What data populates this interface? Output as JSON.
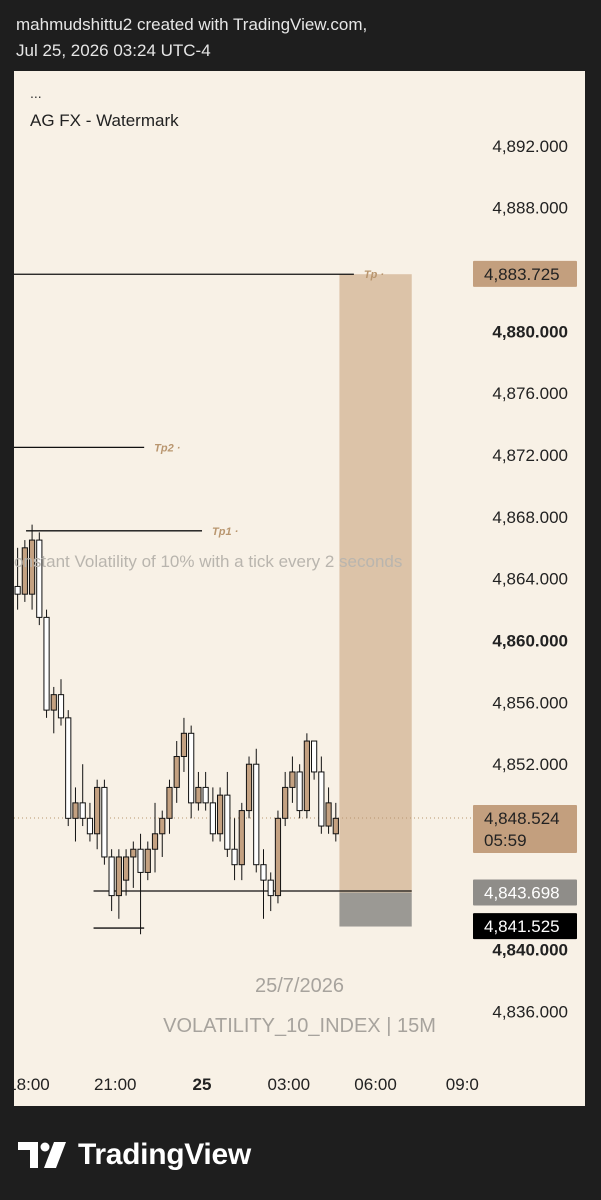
{
  "header": {
    "line1": "mahmudshittu2 created with TradingView.com,",
    "line2": "Jul 25, 2026 03:24 UTC-4"
  },
  "chart_header": {
    "menu": "...",
    "subtitle": "AG FX - Watermark"
  },
  "watermark": {
    "date": "25/7/2026",
    "symbol": "VOLATILITY_10_INDEX | 15M"
  },
  "note_text": "onstant Volatility of 10% with a tick every 2 seconds",
  "brand": {
    "name": "TradingView",
    "icon": "tradingview-logo-icon"
  },
  "colors": {
    "up_fill": "#c4a181",
    "down_fill": "#ffffff",
    "candle_border": "#111111",
    "tp_zone": "#dcc3a8",
    "sl_zone": "#9b9994",
    "tp_label": "#b9966f",
    "price_label": "#c39f7e",
    "sl_label": "#8f8d89"
  },
  "chart_data": {
    "type": "candlestick",
    "title": "",
    "y_axis": {
      "min": 4835,
      "max": 4894,
      "ticks": [
        {
          "value": 4892,
          "label": "4,892.000",
          "bold": false
        },
        {
          "value": 4888,
          "label": "4,888.000",
          "bold": false
        },
        {
          "value": 4880,
          "label": "4,880.000",
          "bold": true
        },
        {
          "value": 4876,
          "label": "4,876.000",
          "bold": false
        },
        {
          "value": 4872,
          "label": "4,872.000",
          "bold": false
        },
        {
          "value": 4868,
          "label": "4,868.000",
          "bold": false
        },
        {
          "value": 4864,
          "label": "4,864.000",
          "bold": false
        },
        {
          "value": 4860,
          "label": "4,860.000",
          "bold": true
        },
        {
          "value": 4856,
          "label": "4,856.000",
          "bold": false
        },
        {
          "value": 4852,
          "label": "4,852.000",
          "bold": false
        },
        {
          "value": 4840,
          "label": "4,840.000",
          "bold": true
        },
        {
          "value": 4836,
          "label": "4,836.000",
          "bold": false
        }
      ]
    },
    "x_axis": {
      "start": "2026-07-24 17:30",
      "end": "2026-07-25 09:20",
      "ticks": [
        {
          "time": "2026-07-24 18:00",
          "label": "18:00",
          "bold": false
        },
        {
          "time": "2026-07-24 21:00",
          "label": "21:00",
          "bold": false
        },
        {
          "time": "2026-07-25 00:00",
          "label": "25",
          "bold": true
        },
        {
          "time": "2026-07-25 03:00",
          "label": "03:00",
          "bold": false
        },
        {
          "time": "2026-07-25 06:00",
          "label": "06:00",
          "bold": false
        },
        {
          "time": "2026-07-25 09:00",
          "label": "09:0",
          "bold": false
        }
      ]
    },
    "price_labels": [
      {
        "value": 4883.725,
        "label": "4,883.725",
        "style": "tp"
      },
      {
        "value": 4848.524,
        "label": "4,848.524",
        "sub": "05:59",
        "style": "current"
      },
      {
        "value": 4843.698,
        "label": "4,843.698",
        "style": "entry"
      },
      {
        "value": 4841.525,
        "label": "4,841.525",
        "style": "sl"
      }
    ],
    "current_price": 4848.524,
    "lines": [
      {
        "value": 4883.7,
        "from": "2026-07-24 17:30",
        "to": "2026-07-25 05:15",
        "label": "Tp"
      },
      {
        "value": 4872.5,
        "from": "2026-07-24 17:30",
        "to": "2026-07-24 22:00",
        "label": "Tp2"
      },
      {
        "value": 4867.1,
        "from": "2026-07-24 17:55",
        "to": "2026-07-25 00:00",
        "label": "Tp1"
      },
      {
        "value": 4843.8,
        "from": "2026-07-24 20:15",
        "to": "2026-07-25 07:15",
        "label": ""
      },
      {
        "value": 4841.4,
        "from": "2026-07-24 20:15",
        "to": "2026-07-24 22:00",
        "label": ""
      }
    ],
    "position": {
      "from": "2026-07-25 04:45",
      "to": "2026-07-25 07:15",
      "entry": 4843.7,
      "take_profit": 4883.7,
      "stop_loss": 4841.5
    },
    "candles": [
      {
        "t": "2026-07-24 17:30",
        "o": 4863.5,
        "h": 4866.0,
        "l": 4862.0,
        "c": 4863.0
      },
      {
        "t": "2026-07-24 17:45",
        "o": 4863.0,
        "h": 4866.5,
        "l": 4862.5,
        "c": 4866.0
      },
      {
        "t": "2026-07-24 18:00",
        "o": 4863.0,
        "h": 4867.5,
        "l": 4862.0,
        "c": 4866.5
      },
      {
        "t": "2026-07-24 18:15",
        "o": 4866.5,
        "h": 4867.0,
        "l": 4861.0,
        "c": 4861.5
      },
      {
        "t": "2026-07-24 18:30",
        "o": 4861.5,
        "h": 4862.0,
        "l": 4855.0,
        "c": 4855.5
      },
      {
        "t": "2026-07-24 18:45",
        "o": 4855.5,
        "h": 4857.0,
        "l": 4854.0,
        "c": 4856.5
      },
      {
        "t": "2026-07-24 19:00",
        "o": 4856.5,
        "h": 4857.5,
        "l": 4854.5,
        "c": 4855.0
      },
      {
        "t": "2026-07-24 19:15",
        "o": 4855.0,
        "h": 4855.5,
        "l": 4848.0,
        "c": 4848.5
      },
      {
        "t": "2026-07-24 19:30",
        "o": 4848.5,
        "h": 4850.5,
        "l": 4847.0,
        "c": 4849.5
      },
      {
        "t": "2026-07-24 19:45",
        "o": 4849.5,
        "h": 4852.0,
        "l": 4848.0,
        "c": 4848.5
      },
      {
        "t": "2026-07-24 20:00",
        "o": 4848.5,
        "h": 4849.5,
        "l": 4847.0,
        "c": 4847.5
      },
      {
        "t": "2026-07-24 20:15",
        "o": 4847.5,
        "h": 4851.0,
        "l": 4846.5,
        "c": 4850.5
      },
      {
        "t": "2026-07-24 20:30",
        "o": 4850.5,
        "h": 4851.0,
        "l": 4845.5,
        "c": 4846.0
      },
      {
        "t": "2026-07-24 20:45",
        "o": 4846.0,
        "h": 4846.5,
        "l": 4842.5,
        "c": 4843.5
      },
      {
        "t": "2026-07-24 21:00",
        "o": 4843.5,
        "h": 4846.5,
        "l": 4842.0,
        "c": 4846.0
      },
      {
        "t": "2026-07-24 21:15",
        "o": 4844.5,
        "h": 4846.5,
        "l": 4843.5,
        "c": 4846.0
      },
      {
        "t": "2026-07-24 21:30",
        "o": 4846.0,
        "h": 4847.0,
        "l": 4844.0,
        "c": 4846.5
      },
      {
        "t": "2026-07-24 21:45",
        "o": 4846.5,
        "h": 4847.5,
        "l": 4841.0,
        "c": 4845.0
      },
      {
        "t": "2026-07-24 22:00",
        "o": 4845.0,
        "h": 4847.0,
        "l": 4844.5,
        "c": 4846.5
      },
      {
        "t": "2026-07-24 22:15",
        "o": 4846.5,
        "h": 4849.5,
        "l": 4845.0,
        "c": 4847.5
      },
      {
        "t": "2026-07-24 22:30",
        "o": 4847.5,
        "h": 4849.0,
        "l": 4846.0,
        "c": 4848.5
      },
      {
        "t": "2026-07-24 22:45",
        "o": 4848.5,
        "h": 4851.0,
        "l": 4847.5,
        "c": 4850.5
      },
      {
        "t": "2026-07-24 23:00",
        "o": 4850.5,
        "h": 4853.5,
        "l": 4849.5,
        "c": 4852.5
      },
      {
        "t": "2026-07-24 23:15",
        "o": 4852.5,
        "h": 4855.0,
        "l": 4851.5,
        "c": 4854.0
      },
      {
        "t": "2026-07-24 23:30",
        "o": 4854.0,
        "h": 4854.5,
        "l": 4848.5,
        "c": 4849.5
      },
      {
        "t": "2026-07-24 23:45",
        "o": 4849.5,
        "h": 4851.5,
        "l": 4849.0,
        "c": 4850.5
      },
      {
        "t": "2026-07-25 00:00",
        "o": 4850.5,
        "h": 4851.5,
        "l": 4849.0,
        "c": 4849.5
      },
      {
        "t": "2026-07-25 00:15",
        "o": 4849.5,
        "h": 4850.5,
        "l": 4847.0,
        "c": 4847.5
      },
      {
        "t": "2026-07-25 00:30",
        "o": 4847.5,
        "h": 4850.5,
        "l": 4847.0,
        "c": 4850.0
      },
      {
        "t": "2026-07-25 00:45",
        "o": 4850.0,
        "h": 4851.5,
        "l": 4846.0,
        "c": 4846.5
      },
      {
        "t": "2026-07-25 01:00",
        "o": 4846.5,
        "h": 4848.5,
        "l": 4844.5,
        "c": 4845.5
      },
      {
        "t": "2026-07-25 01:15",
        "o": 4845.5,
        "h": 4849.5,
        "l": 4844.5,
        "c": 4849.0
      },
      {
        "t": "2026-07-25 01:30",
        "o": 4849.0,
        "h": 4852.5,
        "l": 4848.5,
        "c": 4852.0
      },
      {
        "t": "2026-07-25 01:45",
        "o": 4852.0,
        "h": 4853.0,
        "l": 4845.0,
        "c": 4845.5
      },
      {
        "t": "2026-07-25 02:00",
        "o": 4845.5,
        "h": 4846.5,
        "l": 4842.0,
        "c": 4844.5
      },
      {
        "t": "2026-07-25 02:15",
        "o": 4844.5,
        "h": 4845.0,
        "l": 4842.5,
        "c": 4843.5
      },
      {
        "t": "2026-07-25 02:30",
        "o": 4843.5,
        "h": 4849.0,
        "l": 4843.0,
        "c": 4848.5
      },
      {
        "t": "2026-07-25 02:45",
        "o": 4848.5,
        "h": 4851.5,
        "l": 4848.0,
        "c": 4850.5
      },
      {
        "t": "2026-07-25 03:00",
        "o": 4850.5,
        "h": 4852.5,
        "l": 4849.5,
        "c": 4851.5
      },
      {
        "t": "2026-07-25 03:15",
        "o": 4851.5,
        "h": 4852.0,
        "l": 4848.5,
        "c": 4849.0
      },
      {
        "t": "2026-07-25 03:30",
        "o": 4849.0,
        "h": 4854.0,
        "l": 4848.5,
        "c": 4853.5
      },
      {
        "t": "2026-07-25 03:45",
        "o": 4853.5,
        "h": 4853.5,
        "l": 4851.0,
        "c": 4851.5
      },
      {
        "t": "2026-07-25 04:00",
        "o": 4851.5,
        "h": 4852.5,
        "l": 4847.5,
        "c": 4848.0
      },
      {
        "t": "2026-07-25 04:15",
        "o": 4848.0,
        "h": 4850.5,
        "l": 4847.5,
        "c": 4849.5
      },
      {
        "t": "2026-07-25 04:30",
        "o": 4847.5,
        "h": 4849.5,
        "l": 4847.0,
        "c": 4848.5
      }
    ]
  }
}
